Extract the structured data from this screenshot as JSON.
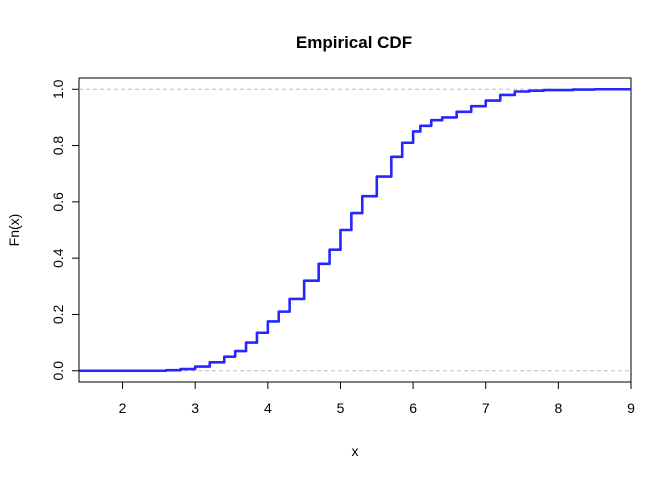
{
  "chart_data": {
    "type": "line",
    "title": "Empirical CDF",
    "xlabel": "x",
    "ylabel": "Fn(x)",
    "xlim": [
      1.4,
      9.0
    ],
    "ylim": [
      -0.04,
      1.04
    ],
    "x_ticks": [
      2,
      3,
      4,
      5,
      6,
      7,
      8,
      9
    ],
    "y_ticks": [
      0.0,
      0.2,
      0.4,
      0.6,
      0.8,
      1.0
    ],
    "y_tick_labels": [
      "0.0",
      "0.2",
      "0.4",
      "0.6",
      "0.8",
      "1.0"
    ],
    "reference_lines": [
      0,
      1
    ],
    "grid": false,
    "legend": "none",
    "line_color": "#1a1aff",
    "reference_line_color": "#bebebe",
    "series": [
      {
        "x": [
          1.4,
          2.4,
          2.6,
          2.8,
          3.0,
          3.2,
          3.4,
          3.55,
          3.7,
          3.85,
          4.0,
          4.15,
          4.3,
          4.5,
          4.7,
          4.85,
          5.0,
          5.15,
          5.3,
          5.5,
          5.7,
          5.85,
          6.0,
          6.1,
          6.25,
          6.4,
          6.6,
          6.8,
          7.0,
          7.2,
          7.4,
          7.6,
          7.8,
          8.2,
          8.5,
          9.0
        ],
        "values": [
          0.0,
          0.0,
          0.002,
          0.006,
          0.015,
          0.03,
          0.05,
          0.07,
          0.1,
          0.135,
          0.175,
          0.21,
          0.255,
          0.32,
          0.38,
          0.43,
          0.5,
          0.56,
          0.62,
          0.69,
          0.76,
          0.81,
          0.85,
          0.87,
          0.89,
          0.9,
          0.92,
          0.94,
          0.96,
          0.98,
          0.992,
          0.995,
          0.997,
          0.999,
          1.0,
          1.0
        ]
      }
    ]
  }
}
